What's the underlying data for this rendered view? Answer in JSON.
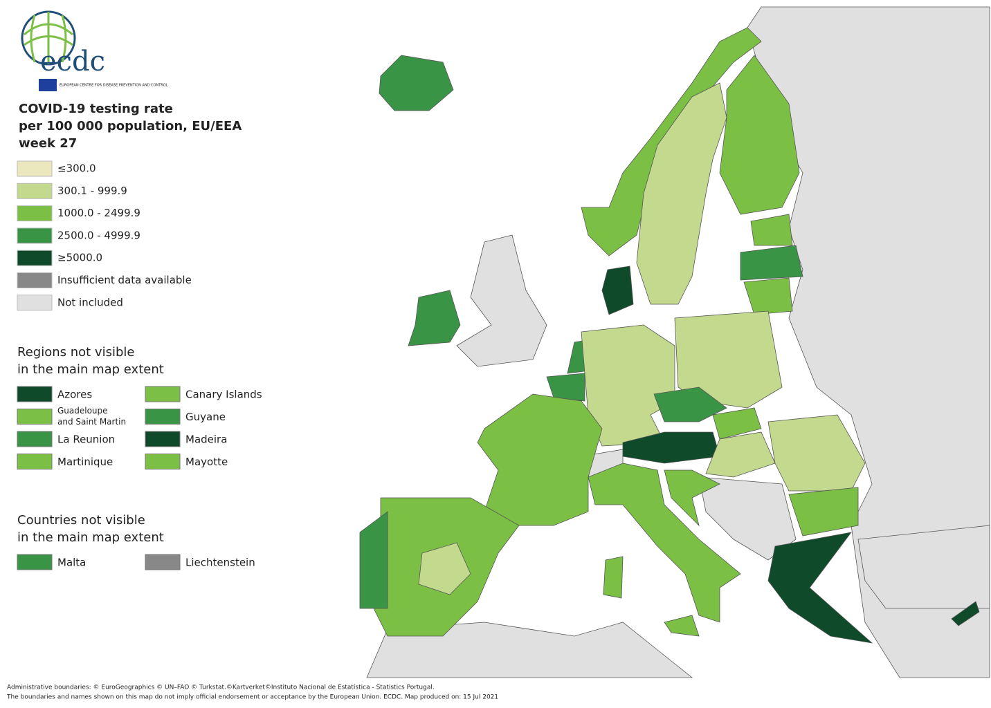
{
  "logo": {
    "wordmark": "ecdc",
    "subtitle": "EUROPEAN CENTRE FOR DISEASE PREVENTION AND CONTROL"
  },
  "title": [
    "COVID-19 testing rate",
    "per 100 000 population, EU/EEA",
    "week 27"
  ],
  "legend": [
    {
      "label": "≤300.0",
      "color": "#ebe8bd"
    },
    {
      "label": "300.1 - 999.9",
      "color": "#c3da8e"
    },
    {
      "label": "1000.0 - 2499.9",
      "color": "#7cbf45"
    },
    {
      "label": "2500.0 - 4999.9",
      "color": "#3a9445"
    },
    {
      "label": "≥5000.0",
      "color": "#0f4a2a"
    },
    {
      "label": "Insufficient data available",
      "color": "#888888"
    },
    {
      "label": "Not included",
      "color": "#e0e0e0"
    }
  ],
  "regions": {
    "title": [
      "Regions not visible",
      "in the main map extent"
    ],
    "items": [
      {
        "label": "Azores",
        "color": "#0f4a2a"
      },
      {
        "label": "Canary Islands",
        "color": "#7cbf45"
      },
      {
        "label": [
          "Guadeloupe",
          "and Saint Martin"
        ],
        "color": "#7cbf45"
      },
      {
        "label": "Guyane",
        "color": "#3a9445"
      },
      {
        "label": "La Reunion",
        "color": "#3a9445"
      },
      {
        "label": "Madeira",
        "color": "#0f4a2a"
      },
      {
        "label": "Martinique",
        "color": "#7cbf45"
      },
      {
        "label": "Mayotte",
        "color": "#7cbf45"
      }
    ]
  },
  "countries": {
    "title": [
      "Countries not visible",
      "in the main map extent"
    ],
    "items": [
      {
        "label": "Malta",
        "color": "#3a9445"
      },
      {
        "label": "Liechtenstein",
        "color": "#888888"
      }
    ]
  },
  "footer": [
    "Administrative boundaries: © EuroGeographics © UN–FAO © Turkstat.©Kartverket©Instituto Nacional de Estatística - Statistics Portugal.",
    "The boundaries and names shown on this map do not imply official endorsement or acceptance by the European Union. ECDC. Map produced on: 15 Jul 2021"
  ]
}
